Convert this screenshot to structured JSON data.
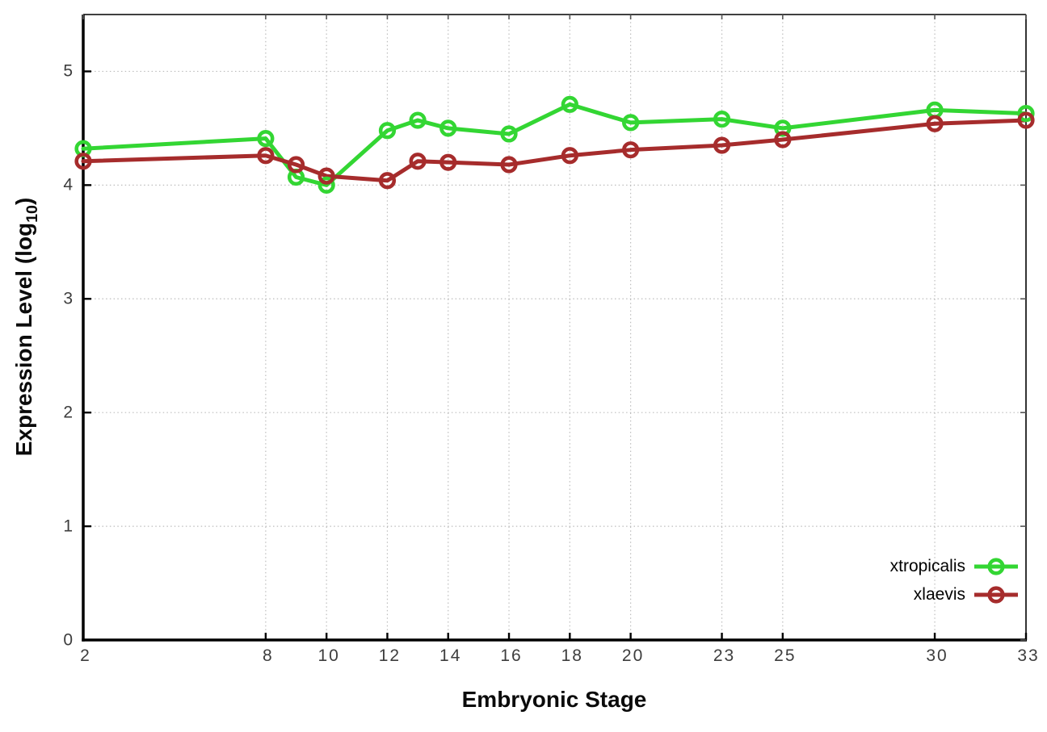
{
  "labels": {
    "xlabel": "Embryonic Stage",
    "ylabel_prefix": "Expression Level (log",
    "ylabel_sub": "10",
    "ylabel_suffix": ")"
  },
  "legend": {
    "items": [
      {
        "label": "xtropicalis",
        "color": "#33D633"
      },
      {
        "label": "xlaevis",
        "color": "#A62C2C"
      }
    ]
  },
  "colors": {
    "grid": "#bdbdbd",
    "axis": "#000000",
    "mirror_tick": "#555555",
    "tick_text": "#3d3d3d",
    "label_text": "#0b0b0b",
    "background": "#ffffff"
  },
  "chart_data": {
    "type": "line",
    "title": "",
    "xlabel": "Embryonic Stage",
    "ylabel": "Expression Level (log10)",
    "x": [
      2,
      8,
      9,
      10,
      12,
      13,
      14,
      16,
      18,
      20,
      23,
      25,
      30,
      33
    ],
    "series": [
      {
        "name": "xtropicalis",
        "color": "#33D633",
        "values": [
          4.32,
          4.41,
          4.07,
          4.0,
          4.48,
          4.57,
          4.5,
          4.45,
          4.71,
          4.55,
          4.58,
          4.5,
          4.66,
          4.63
        ]
      },
      {
        "name": "xlaevis",
        "color": "#A62C2C",
        "values": [
          4.21,
          4.26,
          4.18,
          4.08,
          4.04,
          4.21,
          4.2,
          4.18,
          4.26,
          4.31,
          4.35,
          4.4,
          4.54,
          4.57
        ]
      }
    ],
    "xticks": [
      2,
      8,
      10,
      12,
      14,
      16,
      18,
      20,
      23,
      25,
      30,
      33
    ],
    "yticks": [
      0,
      1,
      2,
      3,
      4,
      5
    ],
    "xlim": [
      2,
      33
    ],
    "ylim": [
      0,
      5.5
    ],
    "grid": true,
    "grid_style": "dotted",
    "legend_position": "bottom-right",
    "marker": "open-circle",
    "line_width": 5,
    "marker_radius": 8.3
  }
}
